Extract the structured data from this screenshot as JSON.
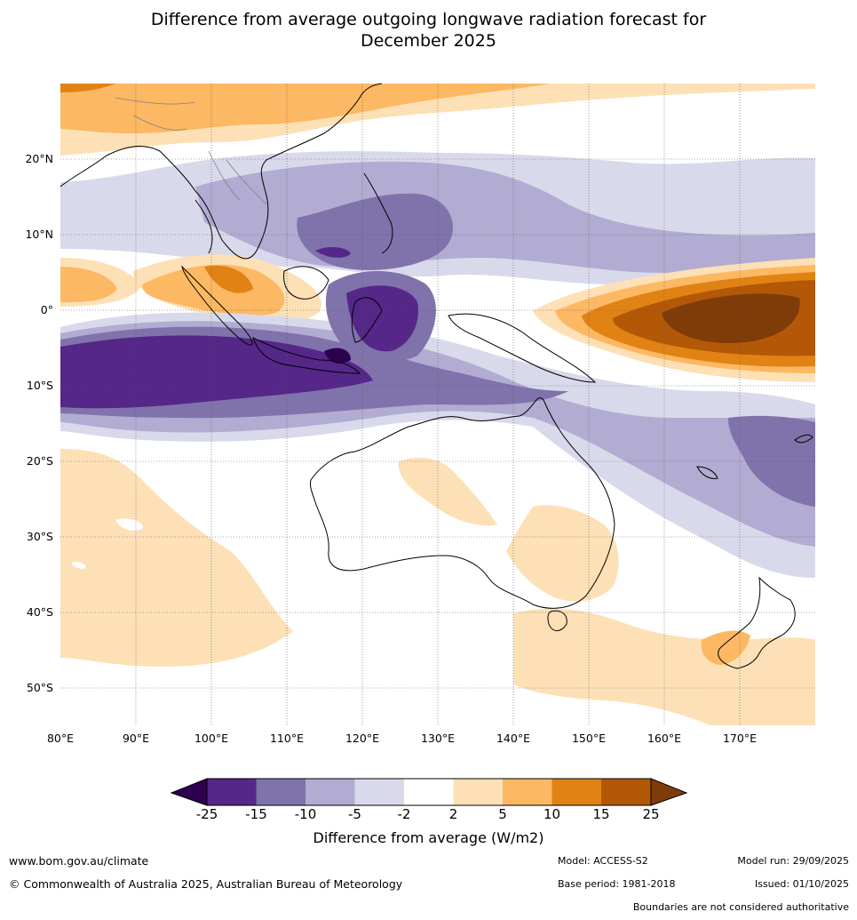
{
  "title_line1": "Difference from average outgoing longwave radiation forecast for",
  "title_line2": "December 2025",
  "lat_labels": [
    "20°N",
    "10°N",
    "0°",
    "10°S",
    "20°S",
    "30°S",
    "40°S",
    "50°S"
  ],
  "lon_labels": [
    "80°E",
    "90°E",
    "100°E",
    "110°E",
    "120°E",
    "130°E",
    "140°E",
    "150°E",
    "160°E",
    "170°E"
  ],
  "colorbar": {
    "title": "Difference from average (W/m2)",
    "ticks": [
      "-25",
      "-15",
      "-10",
      "-5",
      "-2",
      "2",
      "5",
      "10",
      "15",
      "25"
    ],
    "colors": {
      "lt_-25": "#2d0050",
      "-25_-15": "#542788",
      "-15_-10": "#8073ac",
      "-10_-5": "#b2abd2",
      "-5_-2": "#d8daeb",
      "-2_2": "#ffffff",
      "2_5": "#fee0b6",
      "5_10": "#fdb863",
      "10_15": "#e08214",
      "15_25": "#b35806",
      "gt_25": "#7f3b08"
    }
  },
  "footer": {
    "website": "www.bom.gov.au/climate",
    "copyright": "© Commonwealth of Australia 2025, Australian Bureau of Meteorology",
    "model": "Model: ACCESS-S2",
    "base_period": "Base period: 1981-2018",
    "model_run": "Model run: 29/09/2025",
    "issued": "Issued: 01/10/2025",
    "disclaimer": "Boundaries are not considered authoritative"
  }
}
